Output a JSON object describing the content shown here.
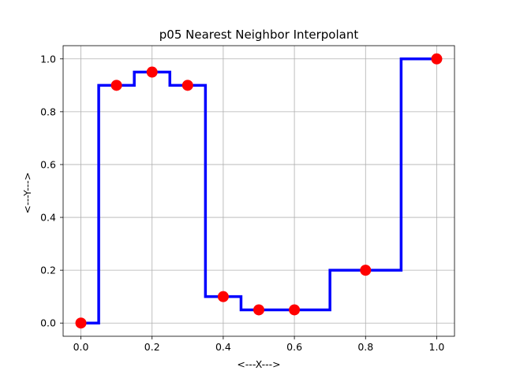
{
  "chart_data": {
    "type": "line",
    "title": "p05 Nearest Neighbor Interpolant",
    "xlabel": "<---X--->",
    "ylabel": "<---Y--->",
    "xlim": [
      -0.05,
      1.05
    ],
    "ylim": [
      -0.05,
      1.05
    ],
    "grid": true,
    "x_ticks": [
      "0.0",
      "0.2",
      "0.4",
      "0.6",
      "0.8",
      "1.0"
    ],
    "y_ticks": [
      "0.0",
      "0.2",
      "0.4",
      "0.6",
      "0.8",
      "1.0"
    ],
    "series": [
      {
        "kind": "step-line",
        "color": "#0000ff",
        "x": [
          0.0,
          0.05,
          0.05,
          0.15,
          0.15,
          0.25,
          0.25,
          0.35,
          0.35,
          0.45,
          0.45,
          0.7,
          0.7,
          0.9,
          0.9,
          1.0
        ],
        "y": [
          0.0,
          0.0,
          0.9,
          0.9,
          0.95,
          0.95,
          0.9,
          0.9,
          0.1,
          0.1,
          0.05,
          0.05,
          0.2,
          0.2,
          1.0,
          1.0
        ]
      },
      {
        "kind": "points",
        "color": "#ff0000",
        "x": [
          0.0,
          0.1,
          0.2,
          0.3,
          0.4,
          0.5,
          0.6,
          0.8,
          1.0
        ],
        "y": [
          0.0,
          0.9,
          0.95,
          0.9,
          0.1,
          0.05,
          0.05,
          0.2,
          1.0
        ]
      }
    ]
  }
}
